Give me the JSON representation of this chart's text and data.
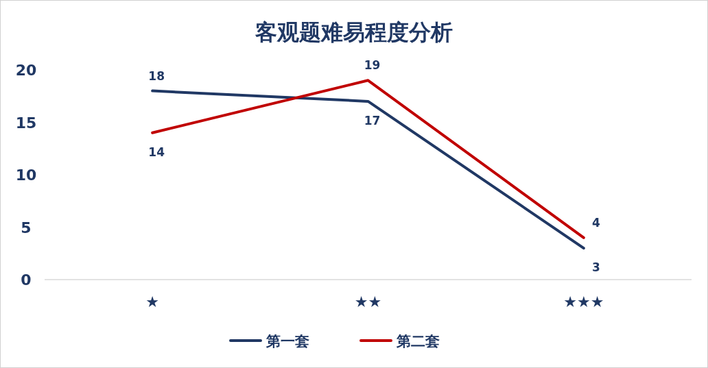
{
  "chart_data": {
    "type": "line",
    "title": "客观题难易程度分析",
    "categories": [
      "★",
      "★★",
      "★★★"
    ],
    "series": [
      {
        "name": "第一套",
        "color": "#203864",
        "values": [
          18,
          17,
          3
        ]
      },
      {
        "name": "第二套",
        "color": "#c00000",
        "values": [
          14,
          19,
          4
        ]
      }
    ],
    "ylim": [
      0,
      20
    ],
    "yticks": [
      0,
      5,
      10,
      15,
      20
    ],
    "grid": false,
    "legend": "bottom",
    "data_labels": true,
    "marker": "none",
    "line_style": "solid"
  }
}
